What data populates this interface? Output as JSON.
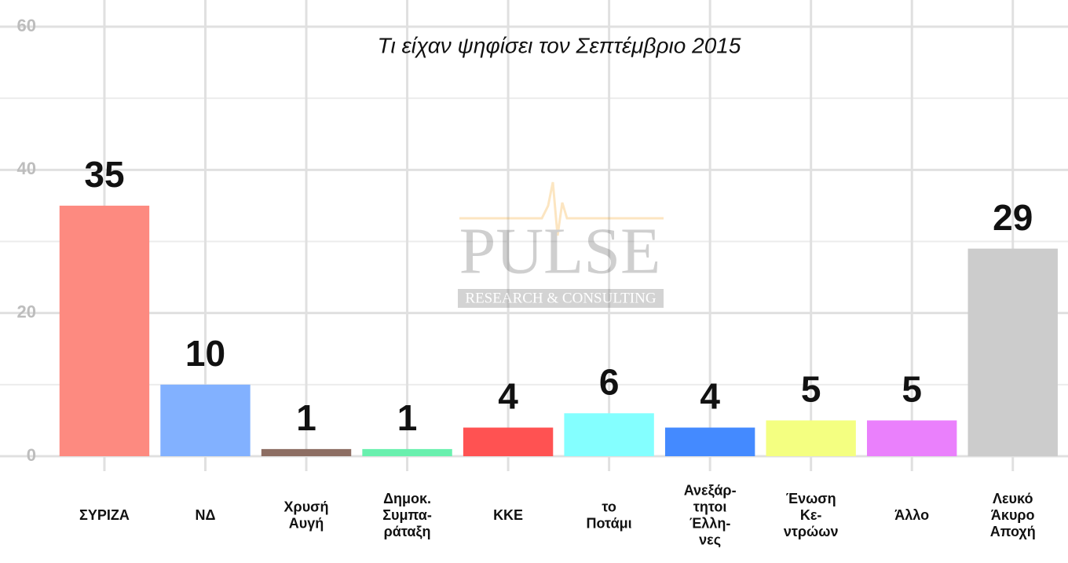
{
  "chart_data": {
    "type": "bar",
    "title": "Τι είχαν ψηφίσει τον Σεπτέμβριο 2015",
    "watermark": {
      "name": "PULSE",
      "subtitle": "RESEARCH & CONSULTING"
    },
    "categories": [
      "ΣΥΡΙΖΑ",
      "ΝΔ",
      "Χρυσή\nΑυγή",
      "Δημοκ.\nΣυμπα-\nράταξη",
      "ΚΚΕ",
      "το\nΠοτάμι",
      "Ανεξάρ-\nτητοι\nΈλλη-\nνες",
      "Ένωση\nΚε-\nντρώων",
      "Άλλο",
      "Λευκό\nΆκυρο\nΑποχή"
    ],
    "values": [
      35,
      10,
      1,
      1,
      4,
      6,
      4,
      5,
      5,
      29
    ],
    "colors": [
      "#fd8a80",
      "#82b1ff",
      "#8d6e63",
      "#69f0ae",
      "#ff5252",
      "#84ffff",
      "#448aff",
      "#f4ff81",
      "#ea80fc",
      "#cccccc"
    ],
    "ylim": [
      0,
      60
    ],
    "yticks": [
      0,
      20,
      40,
      60
    ],
    "grid": true
  }
}
